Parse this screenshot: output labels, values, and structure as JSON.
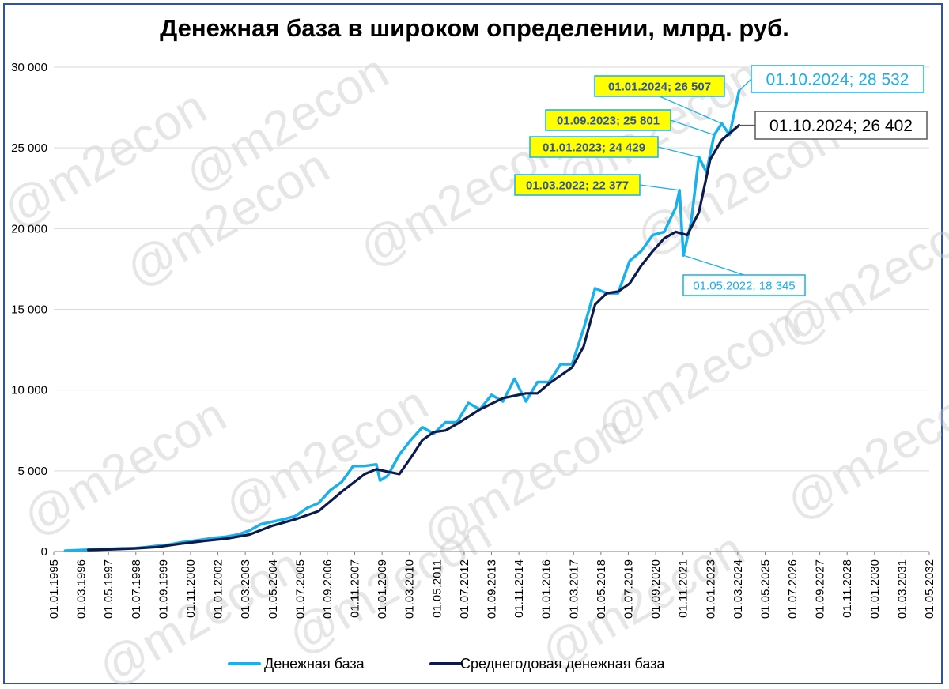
{
  "chart_data": {
    "type": "line",
    "title": "Денежная база в широком определении, млрд. руб.",
    "xlabel": "",
    "ylabel": "",
    "ylim": [
      0,
      30000
    ],
    "yticks": [
      "0",
      "5 000",
      "10 000",
      "15 000",
      "20 000",
      "25 000",
      "30 000"
    ],
    "xlim": [
      "1995-01-01",
      "2033-01-01"
    ],
    "xtick_labels": [
      "01.01.1995",
      "01.03.1996",
      "01.05.1997",
      "01.07.1998",
      "01.09.1999",
      "01.11.2000",
      "01.01.2002",
      "01.03.2003",
      "01.05.2004",
      "01.07.2005",
      "01.09.2006",
      "01.11.2007",
      "01.01.2009",
      "01.03.2010",
      "01.05.2011",
      "01.07.2012",
      "01.09.2013",
      "01.11.2014",
      "01.01.2016",
      "01.03.2017",
      "01.05.2018",
      "01.07.2019",
      "01.09.2020",
      "01.11.2021",
      "01.01.2023",
      "01.03.2024",
      "01.05.2025",
      "01.07.2026",
      "01.09.2027",
      "01.11.2028",
      "01.01.2030",
      "01.03.2031",
      "01.05.2032"
    ],
    "grid": "horizontal",
    "legend_position": "bottom",
    "series": [
      {
        "name": "Денежная база",
        "color": "#1ab0ea",
        "points": [
          [
            "1995-07-01",
            50
          ],
          [
            "1996-01-01",
            80
          ],
          [
            "1996-07-01",
            110
          ],
          [
            "1997-01-01",
            130
          ],
          [
            "1997-07-01",
            160
          ],
          [
            "1998-01-01",
            200
          ],
          [
            "1998-07-01",
            200
          ],
          [
            "1999-01-01",
            270
          ],
          [
            "1999-07-01",
            350
          ],
          [
            "2000-01-01",
            420
          ],
          [
            "2000-07-01",
            560
          ],
          [
            "2001-01-01",
            650
          ],
          [
            "2001-07-01",
            750
          ],
          [
            "2002-01-01",
            850
          ],
          [
            "2002-07-01",
            920
          ],
          [
            "2003-01-01",
            1050
          ],
          [
            "2003-07-01",
            1300
          ],
          [
            "2004-01-01",
            1700
          ],
          [
            "2004-07-01",
            1850
          ],
          [
            "2005-01-01",
            2000
          ],
          [
            "2005-07-01",
            2200
          ],
          [
            "2006-01-01",
            2700
          ],
          [
            "2006-07-01",
            3000
          ],
          [
            "2007-01-01",
            3800
          ],
          [
            "2007-07-01",
            4300
          ],
          [
            "2008-01-01",
            5300
          ],
          [
            "2008-07-01",
            5300
          ],
          [
            "2009-01-01",
            5400
          ],
          [
            "2009-03-01",
            4400
          ],
          [
            "2009-07-01",
            4700
          ],
          [
            "2010-01-01",
            6000
          ],
          [
            "2010-07-01",
            6900
          ],
          [
            "2011-01-01",
            7700
          ],
          [
            "2011-07-01",
            7300
          ],
          [
            "2012-01-01",
            8000
          ],
          [
            "2012-07-01",
            8000
          ],
          [
            "2013-01-01",
            9200
          ],
          [
            "2013-07-01",
            8800
          ],
          [
            "2014-01-01",
            9700
          ],
          [
            "2014-07-01",
            9300
          ],
          [
            "2015-01-01",
            10700
          ],
          [
            "2015-07-01",
            9300
          ],
          [
            "2016-01-01",
            10500
          ],
          [
            "2016-07-01",
            10500
          ],
          [
            "2017-01-01",
            11600
          ],
          [
            "2017-07-01",
            11600
          ],
          [
            "2018-01-01",
            13800
          ],
          [
            "2018-07-01",
            16300
          ],
          [
            "2019-01-01",
            16000
          ],
          [
            "2019-07-01",
            16000
          ],
          [
            "2020-01-01",
            18000
          ],
          [
            "2020-07-01",
            18600
          ],
          [
            "2021-01-01",
            19600
          ],
          [
            "2021-07-01",
            19800
          ],
          [
            "2022-01-01",
            21300
          ],
          [
            "2022-03-01",
            22377
          ],
          [
            "2022-05-01",
            18345
          ],
          [
            "2022-09-01",
            20400
          ],
          [
            "2023-01-01",
            24429
          ],
          [
            "2023-05-01",
            23500
          ],
          [
            "2023-09-01",
            25801
          ],
          [
            "2024-01-01",
            26507
          ],
          [
            "2024-05-01",
            25800
          ],
          [
            "2024-10-01",
            28532
          ]
        ]
      },
      {
        "name": "Среднегодовая денежная база",
        "color": "#0d1b4c",
        "points": [
          [
            "1996-07-01",
            100
          ],
          [
            "1997-07-01",
            130
          ],
          [
            "1998-07-01",
            190
          ],
          [
            "1999-07-01",
            280
          ],
          [
            "2000-07-01",
            480
          ],
          [
            "2001-07-01",
            650
          ],
          [
            "2002-07-01",
            800
          ],
          [
            "2003-07-01",
            1050
          ],
          [
            "2004-07-01",
            1600
          ],
          [
            "2005-07-01",
            2000
          ],
          [
            "2006-07-01",
            2500
          ],
          [
            "2007-07-01",
            3700
          ],
          [
            "2008-07-01",
            4800
          ],
          [
            "2009-01-01",
            5100
          ],
          [
            "2009-07-01",
            4950
          ],
          [
            "2010-01-01",
            4800
          ],
          [
            "2010-07-01",
            5800
          ],
          [
            "2011-01-01",
            6900
          ],
          [
            "2011-07-01",
            7400
          ],
          [
            "2012-01-01",
            7500
          ],
          [
            "2012-07-01",
            7900
          ],
          [
            "2013-07-01",
            8800
          ],
          [
            "2014-07-01",
            9500
          ],
          [
            "2015-07-01",
            9800
          ],
          [
            "2016-01-01",
            9800
          ],
          [
            "2016-07-01",
            10400
          ],
          [
            "2017-07-01",
            11400
          ],
          [
            "2018-01-01",
            12700
          ],
          [
            "2018-07-01",
            15300
          ],
          [
            "2019-01-01",
            16000
          ],
          [
            "2019-07-01",
            16100
          ],
          [
            "2020-01-01",
            16600
          ],
          [
            "2020-07-01",
            17700
          ],
          [
            "2021-01-01",
            18600
          ],
          [
            "2021-07-01",
            19400
          ],
          [
            "2022-01-01",
            19800
          ],
          [
            "2022-07-01",
            19600
          ],
          [
            "2023-01-01",
            21000
          ],
          [
            "2023-07-01",
            24300
          ],
          [
            "2024-01-01",
            25500
          ],
          [
            "2024-10-01",
            26402
          ]
        ]
      }
    ],
    "annotations": [
      {
        "label": "01.10.2024;  28 532",
        "date": "2024-10-01",
        "value": 28532,
        "style": "white-blue"
      },
      {
        "label": "01.10.2024;  26 402",
        "date": "2024-10-01",
        "value": 26402,
        "style": "white-dark"
      },
      {
        "label": "01.01.2024;  26 507",
        "date": "2024-01-01",
        "value": 26507,
        "style": "yellow"
      },
      {
        "label": "01.09.2023;  25 801",
        "date": "2023-09-01",
        "value": 25801,
        "style": "yellow"
      },
      {
        "label": "01.01.2023;  24 429",
        "date": "2023-01-01",
        "value": 24429,
        "style": "yellow"
      },
      {
        "label": "01.03.2022;  22 377",
        "date": "2022-03-01",
        "value": 22377,
        "style": "yellow"
      },
      {
        "label": "01.05.2022;  18 345",
        "date": "2022-05-01",
        "value": 18345,
        "style": "white-blue"
      }
    ],
    "watermark": "@m2econ"
  }
}
